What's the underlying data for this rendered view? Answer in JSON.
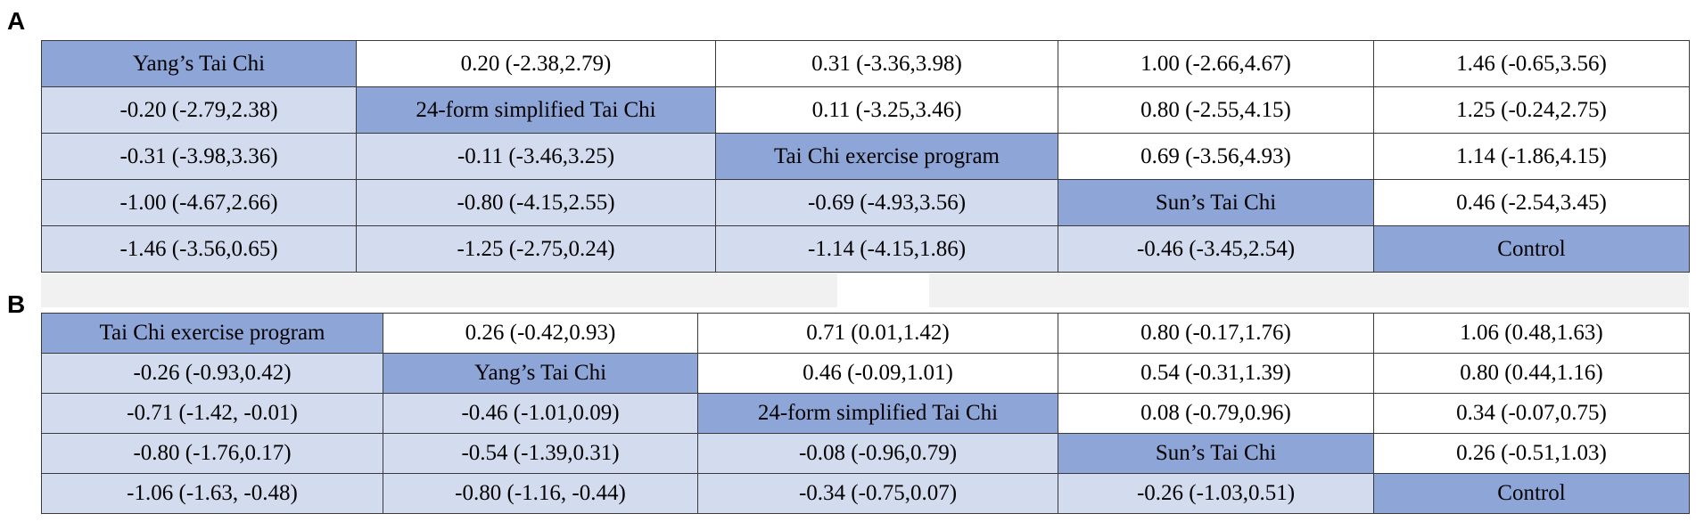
{
  "panels": [
    {
      "label": "A",
      "treatments": [
        "Yang’s Tai Chi",
        "24-form simplified Tai Chi",
        "Tai Chi exercise program",
        "Sun’s Tai Chi",
        "Control"
      ],
      "rows": [
        [
          "Yang’s Tai Chi",
          "0.20 (-2.38,2.79)",
          "0.31 (-3.36,3.98)",
          "1.00 (-2.66,4.67)",
          "1.46 (-0.65,3.56)"
        ],
        [
          "-0.20 (-2.79,2.38)",
          "24-form simplified Tai Chi",
          "0.11 (-3.25,3.46)",
          "0.80 (-2.55,4.15)",
          "1.25 (-0.24,2.75)"
        ],
        [
          "-0.31 (-3.98,3.36)",
          "-0.11 (-3.46,3.25)",
          "Tai Chi exercise program",
          "0.69 (-3.56,4.93)",
          "1.14 (-1.86,4.15)"
        ],
        [
          "-1.00 (-4.67,2.66)",
          "-0.80 (-4.15,2.55)",
          "-0.69 (-4.93,3.56)",
          "Sun’s Tai Chi",
          "0.46 (-2.54,3.45)"
        ],
        [
          "-1.46 (-3.56,0.65)",
          "-1.25 (-2.75,0.24)",
          "-1.14 (-4.15,1.86)",
          "-0.46 (-3.45,2.54)",
          "Control"
        ]
      ]
    },
    {
      "label": "B",
      "treatments": [
        "Tai Chi exercise program",
        "Yang’s Tai Chi",
        "24-form simplified Tai Chi",
        "Sun’s Tai Chi",
        "Control"
      ],
      "rows": [
        [
          "Tai Chi exercise program",
          "0.26 (-0.42,0.93)",
          "0.71 (0.01,1.42)",
          "0.80 (-0.17,1.76)",
          "1.06 (0.48,1.63)"
        ],
        [
          "-0.26 (-0.93,0.42)",
          "Yang’s Tai Chi",
          "0.46 (-0.09,1.01)",
          "0.54 (-0.31,1.39)",
          "0.80 (0.44,1.16)"
        ],
        [
          "-0.71 (-1.42, -0.01)",
          "-0.46 (-1.01,0.09)",
          "24-form simplified Tai Chi",
          "0.08 (-0.79,0.96)",
          "0.34 (-0.07,0.75)"
        ],
        [
          "-0.80 (-1.76,0.17)",
          "-0.54 (-1.39,0.31)",
          "-0.08 (-0.96,0.79)",
          "Sun’s Tai Chi",
          "0.26 (-0.51,1.03)"
        ],
        [
          "-1.06 (-1.63, -0.48)",
          "-0.80 (-1.16, -0.44)",
          "-0.34 (-0.75,0.07)",
          "-0.26 (-1.03,0.51)",
          "Control"
        ]
      ]
    }
  ],
  "colors": {
    "diagonal": "#8ea5d8",
    "lower": "#d3dcef",
    "upper": "#ffffff",
    "border": "#3a3a3a"
  }
}
